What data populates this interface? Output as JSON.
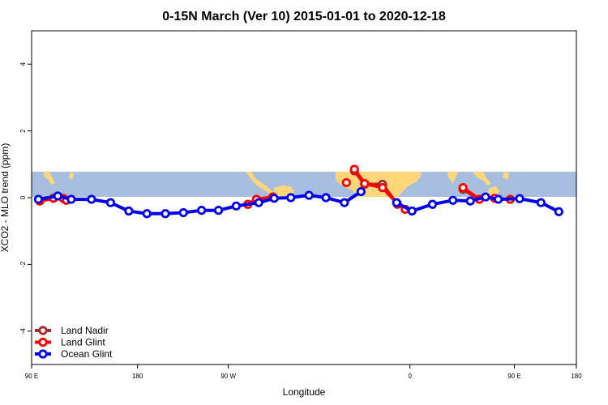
{
  "chart_data": {
    "type": "line",
    "title": "0-15N March (Ver 10)   2015-01-01 to 2020-12-18",
    "xlabel": "Longitude",
    "ylabel": "XCO2 - MLO trend (ppm)",
    "xlim": [
      -90,
      270
    ],
    "ylim": [
      -5,
      5
    ],
    "x_ticks": [
      -90,
      0,
      90,
      180,
      270
    ],
    "x_tick_labels": [
      "90 E",
      "180",
      "90 W",
      "0",
      "90 E",
      "180"
    ],
    "x_tick_positions": [
      -90,
      -20,
      40,
      160,
      229,
      270
    ],
    "y_ticks": [
      -4,
      -2,
      0,
      2,
      4
    ],
    "y_tick_labels": [
      "-4",
      "-2",
      "0",
      "2",
      "4"
    ],
    "band_range": [
      0,
      15
    ],
    "colors": {
      "band": "#a8bedf",
      "land": "#ffd77a",
      "land_nadir": "#a52a2a",
      "land_glint": "#ff0000",
      "ocean_glint": "#0000ee"
    },
    "legend_position": "bottom-left",
    "series": [
      {
        "name": "Land Nadir",
        "color": "#a52a2a",
        "segments": [
          [
            [
              -84.6,
              -0.1
            ],
            [
              -75.6,
              -0.02
            ]
          ],
          [
            [
              -68.2,
              -0.05
            ]
          ],
          [
            [
              52.9,
              -0.2
            ],
            [
              58.6,
              -0.05
            ],
            [
              69.4,
              0.02
            ]
          ],
          [
            [
              123.3,
              0.8
            ],
            [
              130.1,
              0.4
            ],
            [
              141.9,
              0.4
            ],
            [
              151.7,
              -0.2
            ]
          ],
          [
            [
              195.1,
              0.25
            ],
            [
              205.9,
              -0.05
            ]
          ],
          [
            [
              226.3,
              -0.05
            ]
          ]
        ]
      },
      {
        "name": "Land Glint",
        "color": "#ff0000",
        "segments": [
          [
            [
              -84.6,
              -0.1
            ],
            [
              -75.6,
              -0.02
            ],
            [
              -69.2,
              -0.02
            ],
            [
              -67.0,
              -0.08
            ]
          ],
          [
            [
              52.9,
              -0.2
            ],
            [
              58.6,
              -0.05
            ],
            [
              69.4,
              0.02
            ]
          ],
          [
            [
              118.0,
              0.45
            ]
          ],
          [
            [
              123.3,
              0.85
            ],
            [
              130.1,
              0.42
            ],
            [
              141.9,
              0.3
            ],
            [
              151.7,
              -0.18
            ],
            [
              156.9,
              -0.35
            ]
          ],
          [
            [
              195.1,
              0.3
            ],
            [
              205.9,
              -0.05
            ]
          ],
          [
            [
              216.0,
              -0.02
            ],
            [
              226.3,
              -0.05
            ]
          ]
        ]
      },
      {
        "name": "Ocean Glint",
        "color": "#0000ee",
        "segments": [
          [
            [
              -85.5,
              -0.05
            ],
            [
              -72.7,
              0.05
            ],
            [
              -63.8,
              -0.05
            ],
            [
              -50.4,
              -0.05
            ],
            [
              -37.8,
              -0.15
            ],
            [
              -25.8,
              -0.4
            ],
            [
              -13.8,
              -0.48
            ],
            [
              -1.6,
              -0.48
            ],
            [
              10.3,
              -0.45
            ],
            [
              22.3,
              -0.38
            ],
            [
              33.5,
              -0.38
            ],
            [
              45.2,
              -0.25
            ],
            [
              60.1,
              -0.15
            ],
            [
              70.3,
              -0.02
            ],
            [
              81.3,
              0.0
            ],
            [
              93.3,
              0.07
            ],
            [
              104.5,
              0.0
            ],
            [
              116.7,
              -0.15
            ],
            [
              127.7,
              0.18
            ]
          ],
          [
            [
              151.2,
              -0.15
            ],
            [
              161.4,
              -0.4
            ],
            [
              174.9,
              -0.2
            ],
            [
              188.4,
              -0.08
            ],
            [
              199.9,
              -0.1
            ],
            [
              210.0,
              0.02
            ],
            [
              218.4,
              -0.05
            ],
            [
              232.5,
              -0.03
            ],
            [
              246.6,
              -0.15
            ],
            [
              258.4,
              -0.42
            ]
          ]
        ]
      }
    ]
  }
}
